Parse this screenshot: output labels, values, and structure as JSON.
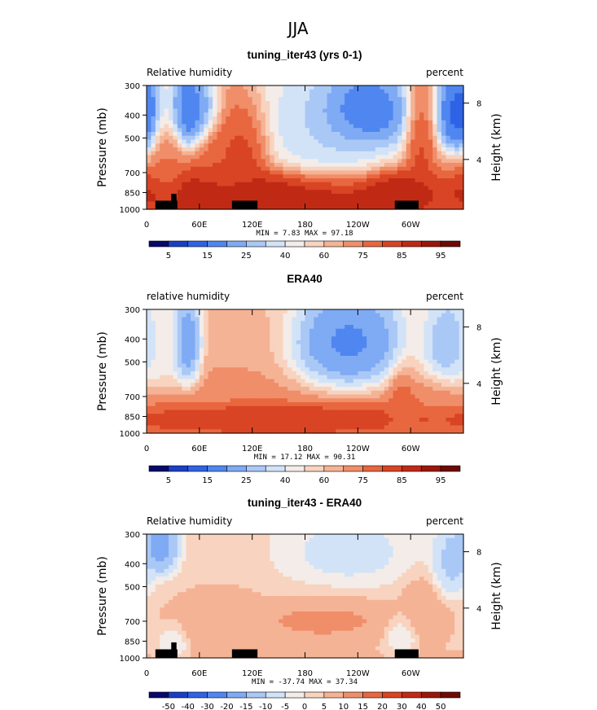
{
  "figure_title": "JJA",
  "colors": {
    "diverging": [
      "#08086b",
      "#1a3fc4",
      "#2e63e6",
      "#4f86f0",
      "#7faaf4",
      "#aac8f6",
      "#d2e3f8",
      "#f3ece8",
      "#f8d3bf",
      "#f5b395",
      "#f08e6a",
      "#e8673f",
      "#d84424",
      "#c02a14",
      "#9a170b",
      "#6e0a05"
    ],
    "land": "#000000"
  },
  "chart_data": [
    {
      "type": "heatmap",
      "title": "tuning_iter43 (yrs 0-1)",
      "left_label": "Relative humidity",
      "right_label": "percent",
      "ylabel": "Pressure (mb)",
      "ylabel_right": "Height (km)",
      "x_ticks": [
        "0",
        "60E",
        "120E",
        "180",
        "120W",
        "60W"
      ],
      "x_tick_lon": [
        0,
        60,
        120,
        180,
        240,
        300
      ],
      "xlim": [
        0,
        360
      ],
      "y_ticks": [
        "300",
        "400",
        "500",
        "700",
        "850",
        "1000"
      ],
      "y_tick_p": [
        300,
        400,
        500,
        700,
        850,
        1000
      ],
      "height_ticks": [
        "8",
        "4"
      ],
      "height_tick_p": [
        356,
        616
      ],
      "stats": "MIN =    7.83   MAX =   97.18",
      "colorbar_labels": [
        "5",
        "15",
        "25",
        "40",
        "60",
        "75",
        "85",
        "95"
      ],
      "colorbar_label_index": [
        1,
        3,
        5,
        7,
        9,
        11,
        13,
        15
      ],
      "colorbar_colors": [
        "#08086b",
        "#1a3fc4",
        "#2e63e6",
        "#4f86f0",
        "#7faaf4",
        "#aac8f6",
        "#d2e3f8",
        "#f3ece8",
        "#f8d3bf",
        "#f5b395",
        "#f08e6a",
        "#e8673f",
        "#d84424",
        "#c02a14",
        "#9a170b",
        "#6e0a05"
      ],
      "zlim": [
        0,
        100
      ],
      "features": [
        {
          "lon": 45,
          "p": 400,
          "v": 12,
          "rl": 18,
          "rp": 110
        },
        {
          "lon": 245,
          "p": 400,
          "v": 8,
          "rl": 38,
          "rp": 110
        },
        {
          "lon": 355,
          "p": 400,
          "v": 10,
          "rl": 18,
          "rp": 120
        },
        {
          "lon": 210,
          "p": 520,
          "v": 35,
          "rl": 60,
          "rp": 220
        },
        {
          "lon": 95,
          "p": 650,
          "v": 75,
          "rl": 30,
          "rp": 250
        },
        {
          "lon": 110,
          "p": 600,
          "v": 82,
          "rl": 20,
          "rp": 170
        },
        {
          "lon": 25,
          "p": 600,
          "v": 70,
          "rl": 14,
          "rp": 220
        },
        {
          "lon": 310,
          "p": 550,
          "v": 80,
          "rl": 12,
          "rp": 220
        },
        {
          "lon": 150,
          "p": 830,
          "v": 90,
          "rl": 120,
          "rp": 130
        },
        {
          "lon": 280,
          "p": 830,
          "v": 88,
          "rl": 30,
          "rp": 120
        },
        {
          "lon": 55,
          "p": 380,
          "v": 22,
          "rl": 20,
          "rp": 80
        }
      ],
      "base_bottom": 78,
      "base_top": 52,
      "land": [
        {
          "lon0": 10,
          "lon1": 35,
          "p0": 920,
          "p1": 1000
        },
        {
          "lon0": 28,
          "lon1": 34,
          "p0": 860,
          "p1": 920
        },
        {
          "lon0": 97,
          "lon1": 126,
          "p0": 920,
          "p1": 1000
        },
        {
          "lon0": 282,
          "lon1": 309,
          "p0": 920,
          "p1": 1000
        }
      ]
    },
    {
      "type": "heatmap",
      "title": "ERA40",
      "left_label": "relative humidity",
      "right_label": "percent",
      "ylabel": "Pressure (mb)",
      "ylabel_right": "Height (km)",
      "x_ticks": [
        "0",
        "60E",
        "120E",
        "180",
        "120W",
        "60W"
      ],
      "x_tick_lon": [
        0,
        60,
        120,
        180,
        240,
        300
      ],
      "xlim": [
        0,
        360
      ],
      "y_ticks": [
        "300",
        "400",
        "500",
        "700",
        "850",
        "1000"
      ],
      "y_tick_p": [
        300,
        400,
        500,
        700,
        850,
        1000
      ],
      "height_ticks": [
        "8",
        "4"
      ],
      "height_tick_p": [
        356,
        616
      ],
      "stats": "MIN =   17.12   MAX =   90.31",
      "colorbar_labels": [
        "5",
        "15",
        "25",
        "40",
        "60",
        "75",
        "85",
        "95"
      ],
      "colorbar_label_index": [
        1,
        3,
        5,
        7,
        9,
        11,
        13,
        15
      ],
      "colorbar_colors": [
        "#08086b",
        "#1a3fc4",
        "#2e63e6",
        "#4f86f0",
        "#7faaf4",
        "#aac8f6",
        "#d2e3f8",
        "#f3ece8",
        "#f8d3bf",
        "#f5b395",
        "#f08e6a",
        "#e8673f",
        "#d84424",
        "#c02a14",
        "#9a170b",
        "#6e0a05"
      ],
      "zlim": [
        0,
        100
      ],
      "features": [
        {
          "lon": 45,
          "p": 420,
          "v": 20,
          "rl": 12,
          "rp": 130
        },
        {
          "lon": 230,
          "p": 420,
          "v": 18,
          "rl": 45,
          "rp": 150
        },
        {
          "lon": 345,
          "p": 420,
          "v": 28,
          "rl": 22,
          "rp": 120
        },
        {
          "lon": 15,
          "p": 420,
          "v": 45,
          "rl": 20,
          "rp": 150
        },
        {
          "lon": 150,
          "p": 870,
          "v": 80,
          "rl": 130,
          "rp": 80
        },
        {
          "lon": 290,
          "p": 800,
          "v": 72,
          "rl": 12,
          "rp": 200
        }
      ],
      "base_bottom": 72,
      "base_top": 58,
      "land": []
    },
    {
      "type": "heatmap",
      "title": "tuning_iter43 - ERA40",
      "left_label": "Relative humidity",
      "right_label": "percent",
      "ylabel": "Pressure (mb)",
      "ylabel_right": "Height (km)",
      "x_ticks": [
        "0",
        "60E",
        "120E",
        "180",
        "120W",
        "60W"
      ],
      "x_tick_lon": [
        0,
        60,
        120,
        180,
        240,
        300
      ],
      "xlim": [
        0,
        360
      ],
      "y_ticks": [
        "300",
        "400",
        "500",
        "700",
        "850",
        "1000"
      ],
      "y_tick_p": [
        300,
        400,
        500,
        700,
        850,
        1000
      ],
      "height_ticks": [
        "8",
        "4"
      ],
      "height_tick_p": [
        356,
        616
      ],
      "stats": "MIN =  -37.74   MAX =   37.34",
      "colorbar_labels": [
        "-50",
        "-40",
        "-30",
        "-20",
        "-15",
        "-10",
        "-5",
        "0",
        "5",
        "10",
        "15",
        "20",
        "30",
        "40",
        "50"
      ],
      "colorbar_label_index": [
        1,
        2,
        3,
        4,
        5,
        6,
        7,
        8,
        9,
        10,
        11,
        12,
        13,
        14,
        15
      ],
      "colorbar_colors": [
        "#08086b",
        "#1a3fc4",
        "#2e63e6",
        "#4f86f0",
        "#7faaf4",
        "#aac8f6",
        "#d2e3f8",
        "#f3ece8",
        "#f8d3bf",
        "#f5b395",
        "#f08e6a",
        "#e8673f",
        "#d84424",
        "#c02a14",
        "#9a170b",
        "#6e0a05"
      ],
      "zlim": [
        -60,
        60
      ],
      "features": [
        {
          "lon": 15,
          "p": 330,
          "v": -30,
          "rl": 15,
          "rp": 80
        },
        {
          "lon": 230,
          "p": 360,
          "v": -12,
          "rl": 50,
          "rp": 90
        },
        {
          "lon": 345,
          "p": 400,
          "v": -20,
          "rl": 15,
          "rp": 110
        },
        {
          "lon": 200,
          "p": 700,
          "v": 18,
          "rl": 60,
          "rp": 100
        },
        {
          "lon": 80,
          "p": 700,
          "v": 15,
          "rl": 40,
          "rp": 140
        },
        {
          "lon": 315,
          "p": 650,
          "v": 15,
          "rl": 20,
          "rp": 140
        },
        {
          "lon": 290,
          "p": 800,
          "v": -10,
          "rl": 12,
          "rp": 100
        },
        {
          "lon": 30,
          "p": 850,
          "v": -8,
          "rl": 12,
          "rp": 100
        }
      ],
      "base_bottom": 8,
      "base_top": 2,
      "land": [
        {
          "lon0": 10,
          "lon1": 35,
          "p0": 920,
          "p1": 1000
        },
        {
          "lon0": 28,
          "lon1": 34,
          "p0": 860,
          "p1": 920
        },
        {
          "lon0": 97,
          "lon1": 126,
          "p0": 920,
          "p1": 1000
        },
        {
          "lon0": 282,
          "lon1": 309,
          "p0": 920,
          "p1": 1000
        }
      ]
    }
  ]
}
